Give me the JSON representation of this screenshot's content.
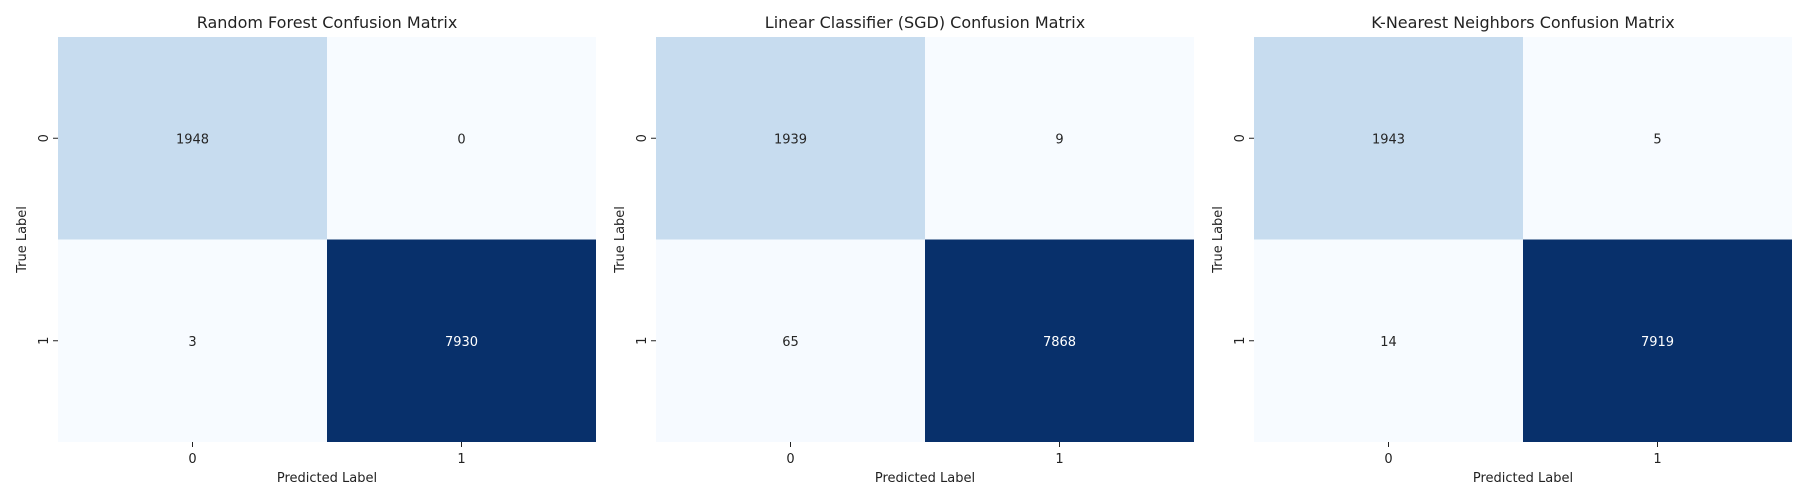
{
  "chart_data": [
    {
      "type": "heatmap",
      "title": "Random Forest Confusion Matrix",
      "xlabel": "Predicted Label",
      "ylabel": "True Label",
      "x_categories": [
        "0",
        "1"
      ],
      "y_categories": [
        "0",
        "1"
      ],
      "values": [
        [
          1948,
          0
        ],
        [
          3,
          7930
        ]
      ],
      "colormap": "Blues",
      "colorbar": false
    },
    {
      "type": "heatmap",
      "title": "Linear Classifier (SGD) Confusion Matrix",
      "xlabel": "Predicted Label",
      "ylabel": "True Label",
      "x_categories": [
        "0",
        "1"
      ],
      "y_categories": [
        "0",
        "1"
      ],
      "values": [
        [
          1939,
          9
        ],
        [
          65,
          7868
        ]
      ],
      "colormap": "Blues",
      "colorbar": false
    },
    {
      "type": "heatmap",
      "title": "K-Nearest Neighbors Confusion Matrix",
      "xlabel": "Predicted Label",
      "ylabel": "True Label",
      "x_categories": [
        "0",
        "1"
      ],
      "y_categories": [
        "0",
        "1"
      ],
      "values": [
        [
          1943,
          5
        ],
        [
          14,
          7919
        ]
      ],
      "colormap": "Blues",
      "colorbar": false
    }
  ],
  "colors": {
    "low": "#f7fbff",
    "mid": "#c6dbef",
    "high": "#08306b",
    "text_dark": "#262626",
    "text_light": "#ffffff"
  }
}
